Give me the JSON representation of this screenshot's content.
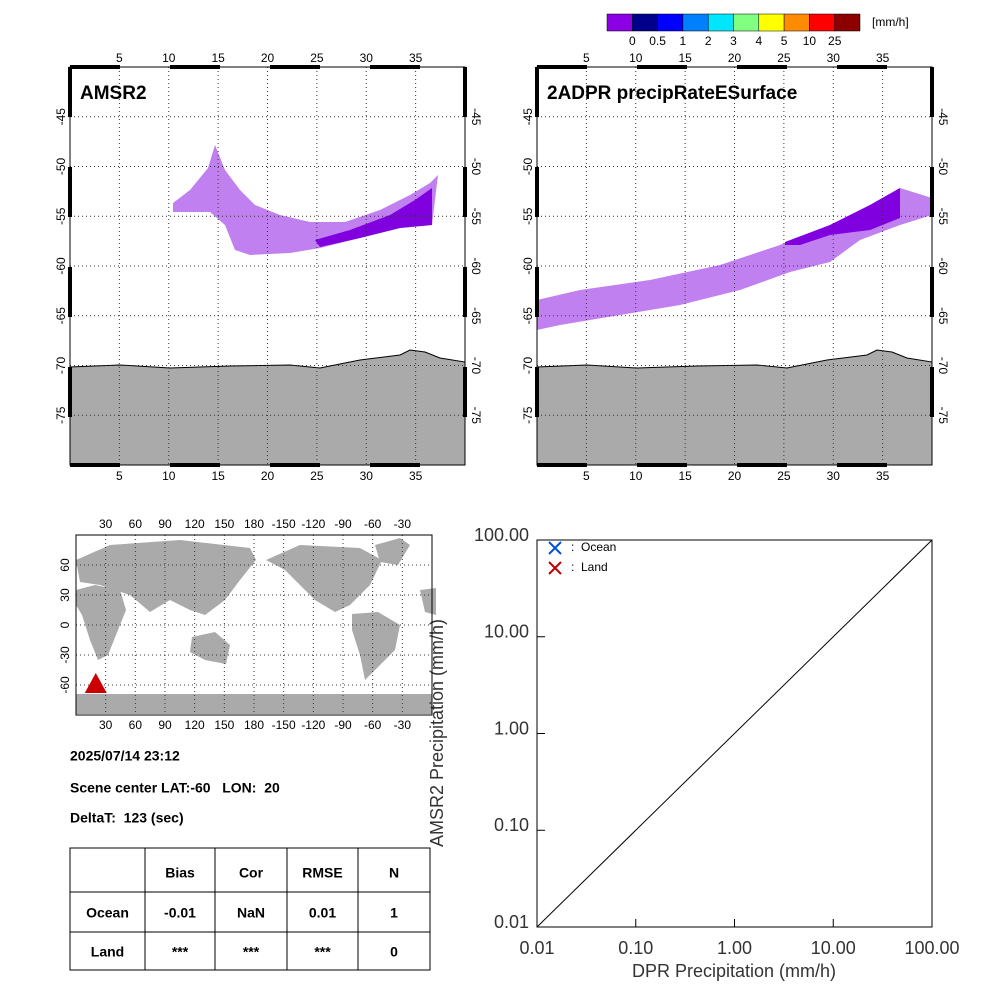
{
  "colorbar": {
    "unit": "[mm/h]",
    "labels": [
      0,
      0.5,
      1,
      2,
      3,
      4,
      5,
      10,
      25
    ],
    "colors": [
      "#8c00e6",
      "#00008c",
      "#0000ff",
      "#0080ff",
      "#00e6ff",
      "#80ff80",
      "#ffff00",
      "#ff8c00",
      "#ff0000",
      "#8c0000"
    ]
  },
  "maps": [
    {
      "title": "AMSR2",
      "xlim": [
        0,
        40
      ],
      "ylim": [
        -80,
        -40
      ],
      "lon_ticks": [
        5,
        10,
        15,
        20,
        25,
        30,
        35
      ],
      "lat_ticks": [
        -45,
        -50,
        -55,
        -60,
        -65,
        -70,
        -75
      ],
      "grid": true
    },
    {
      "title": "2ADPR precipRateESurface",
      "xlim": [
        0,
        40
      ],
      "ylim": [
        -80,
        -40
      ],
      "lon_ticks": [
        5,
        10,
        15,
        20,
        25,
        30,
        35
      ],
      "lat_ticks": [
        -45,
        -50,
        -55,
        -60,
        -65,
        -70,
        -75
      ],
      "grid": true
    }
  ],
  "world_map": {
    "xlim": [
      0,
      360
    ],
    "ylim": [
      -90,
      90
    ],
    "lon_ticks": [
      30,
      60,
      90,
      120,
      150,
      180,
      {
        "value": 210,
        "label": "-150"
      },
      {
        "value": 240,
        "label": "-120"
      },
      {
        "value": 270,
        "label": "-90"
      },
      {
        "value": 300,
        "label": "-60"
      },
      {
        "value": 330,
        "label": "-30"
      }
    ],
    "lat_ticks": [
      60,
      30,
      0,
      -30,
      -60
    ],
    "scene_marker": {
      "lon": 20,
      "lat": -60,
      "color": "#cc0000"
    }
  },
  "info": {
    "datetime": "2025/07/14 23:12",
    "scene_center": "Scene center LAT:-60   LON:  20",
    "delta_t": "DeltaT:  123 (sec)"
  },
  "table": {
    "header": [
      "Bias",
      "Cor",
      "RMSE",
      "N"
    ],
    "rows": [
      {
        "label": "Ocean",
        "cells": [
          "-0.01",
          "NaN",
          "0.01",
          "1"
        ]
      },
      {
        "label": "Land",
        "cells": [
          "***",
          "***",
          "***",
          "0"
        ]
      }
    ]
  },
  "chart_data": {
    "type": "scatter",
    "x_label": "DPR Precipitation (mm/h)",
    "y_label": "AMSR2 Precipitation (mm/h)",
    "log_x": true,
    "log_y": true,
    "xlim": [
      0.01,
      100
    ],
    "ylim": [
      0.01,
      100
    ],
    "xticks": [
      0.01,
      {
        "value": 0.1,
        "label": "0.10"
      },
      {
        "value": 1,
        "label": "1.00"
      },
      {
        "value": 10,
        "label": "10.00"
      },
      {
        "value": 100,
        "label": "100.00"
      }
    ],
    "yticks": [
      0.01,
      {
        "value": 0.1,
        "label": "0.10"
      },
      {
        "value": 1,
        "label": "1.00"
      },
      {
        "value": 10,
        "label": "10.00"
      },
      {
        "value": 100,
        "label": "100.00"
      }
    ],
    "legend": "upper left",
    "series": [
      {
        "name": "Ocean",
        "color": "#0050e0",
        "x": [],
        "values": []
      },
      {
        "name": "Land",
        "color": "#c00000",
        "x": [],
        "values": []
      }
    ]
  }
}
